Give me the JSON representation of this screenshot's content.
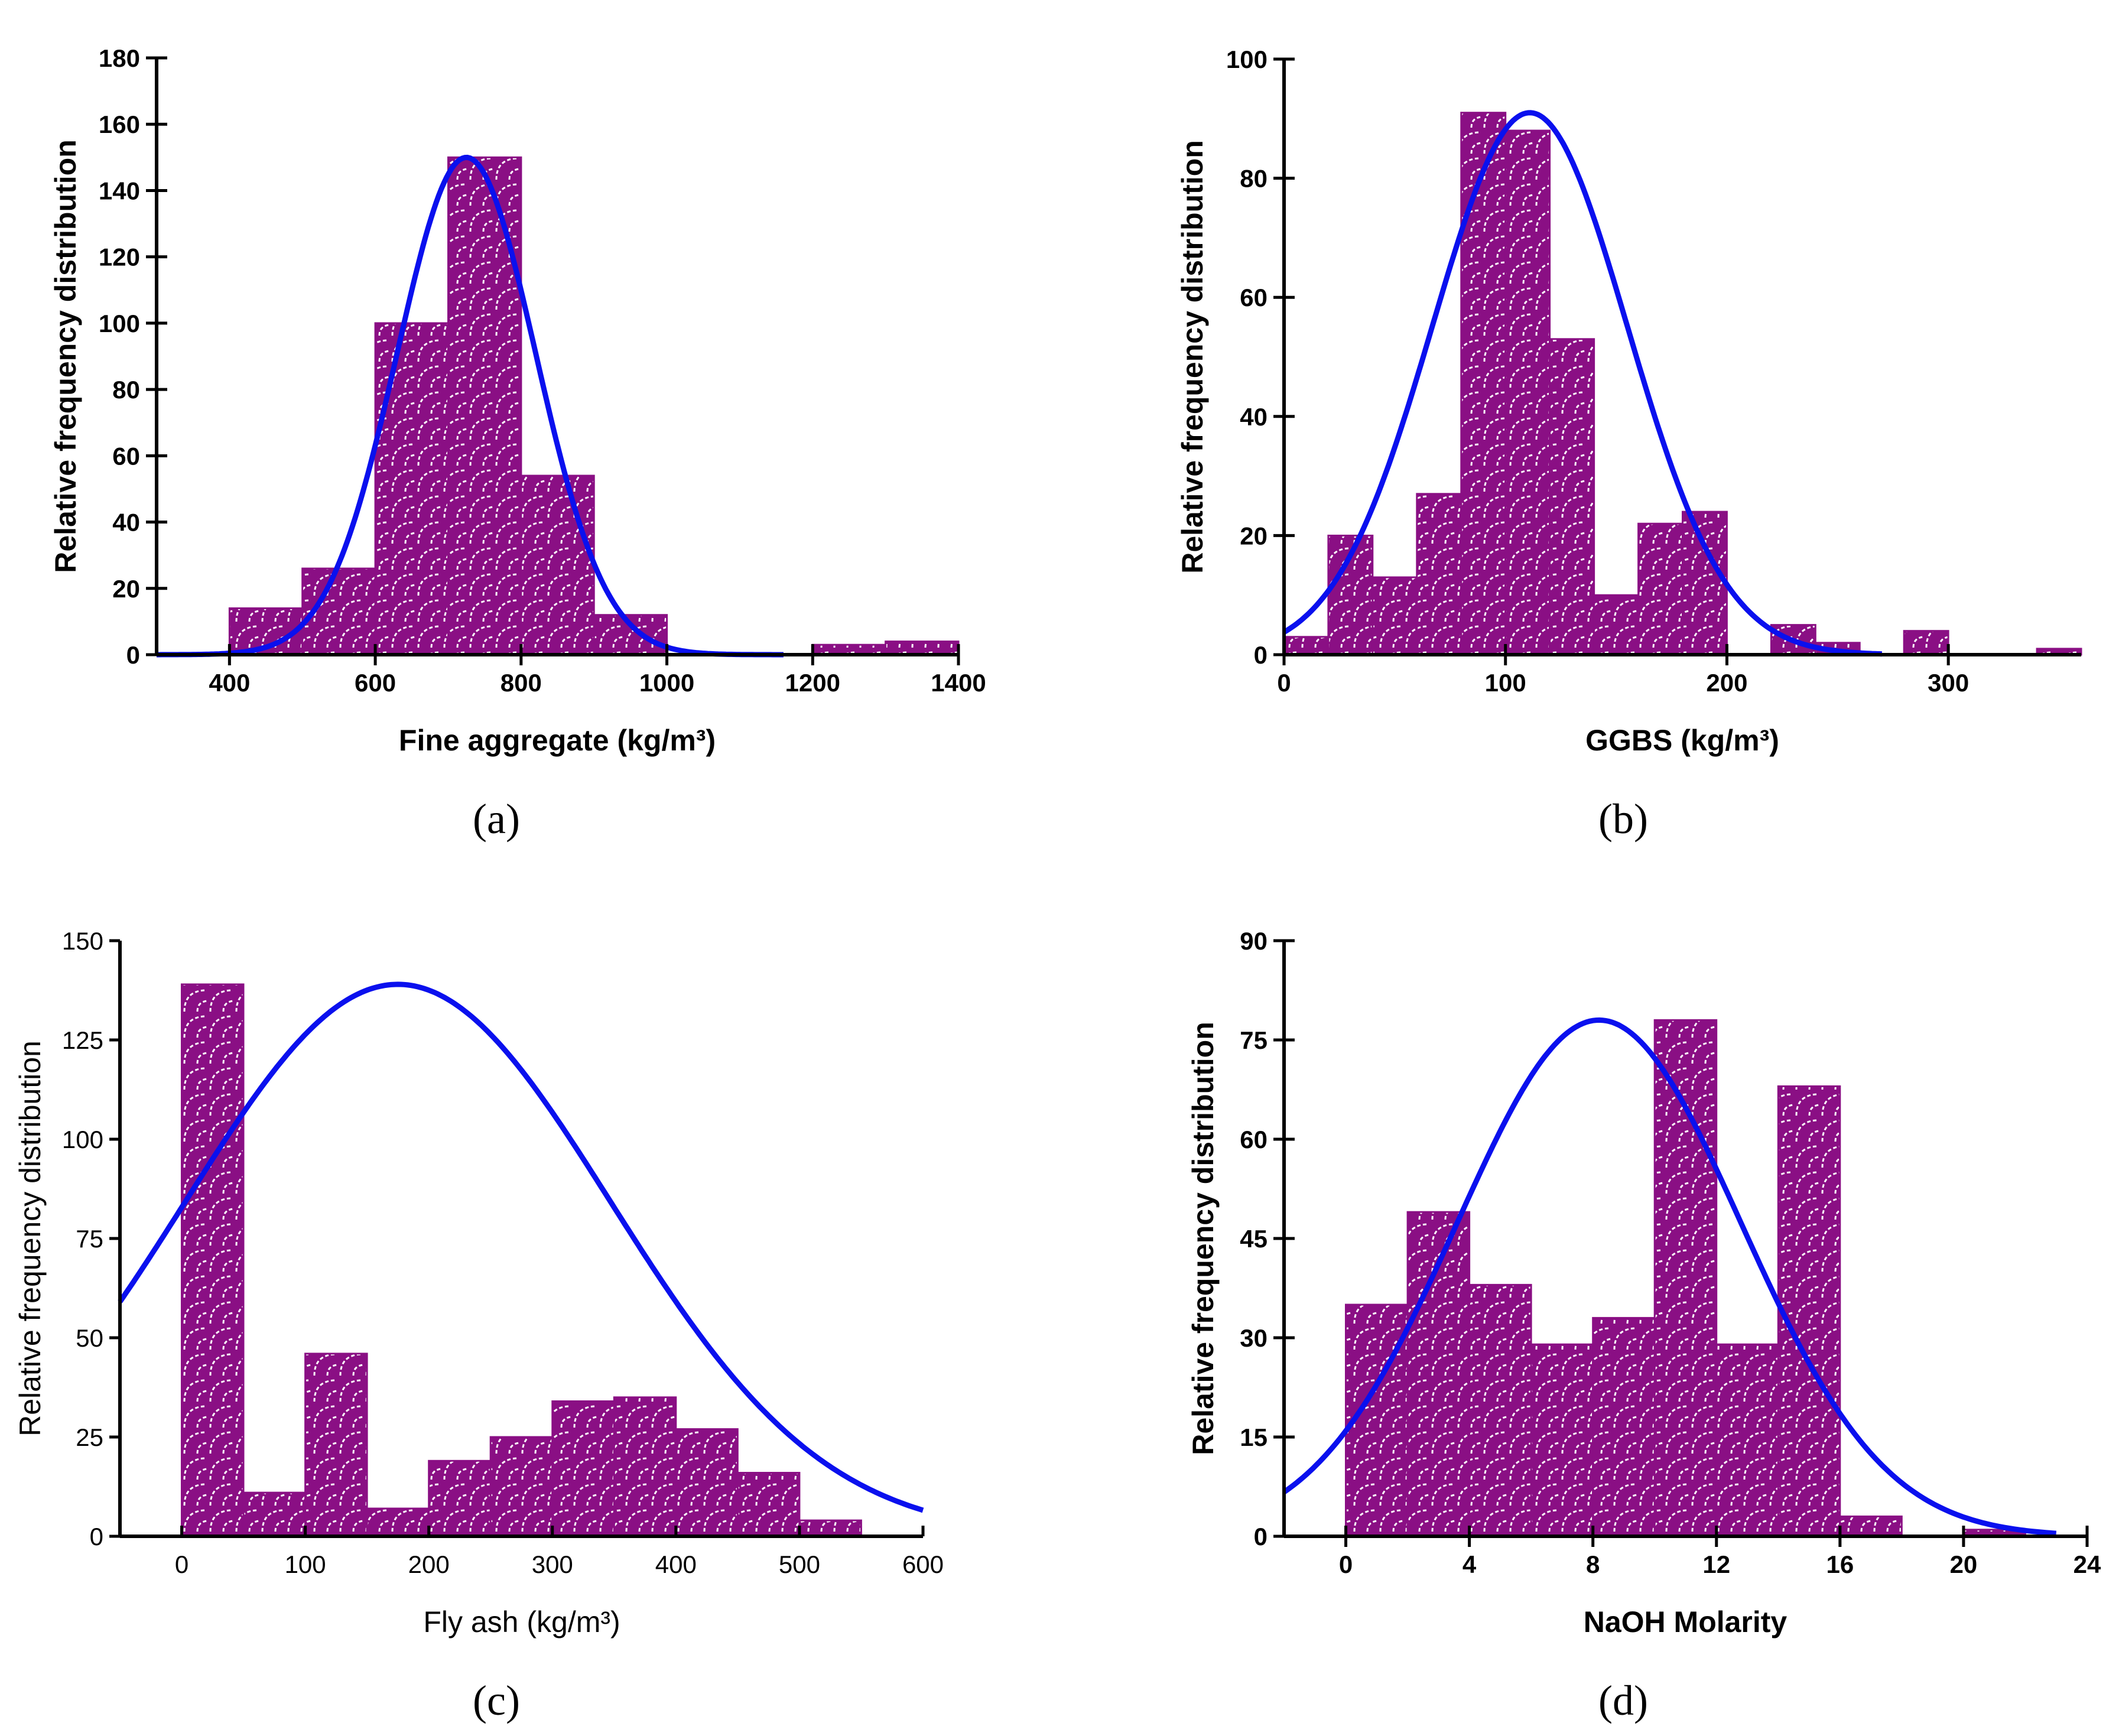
{
  "chart_data": [
    {
      "panel": "(a)",
      "type": "bar",
      "subtype": "histogram-with-normal-fit",
      "xlabel": "Fine aggregate (kg/m³)",
      "ylabel": "Relative frequency distribution",
      "xlim": [
        300,
        1400
      ],
      "ylim": [
        0,
        180
      ],
      "xticks": [
        400,
        600,
        800,
        1000,
        1200,
        1400
      ],
      "yticks": [
        0,
        20,
        40,
        60,
        80,
        100,
        120,
        140,
        160,
        180
      ],
      "bins": [
        {
          "x0": 400,
          "x1": 500,
          "value": 14
        },
        {
          "x0": 500,
          "x1": 600,
          "value": 26
        },
        {
          "x0": 600,
          "x1": 700,
          "value": 100
        },
        {
          "x0": 700,
          "x1": 800,
          "value": 150
        },
        {
          "x0": 800,
          "x1": 900,
          "value": 54
        },
        {
          "x0": 900,
          "x1": 1000,
          "value": 12
        },
        {
          "x0": 1200,
          "x1": 1300,
          "value": 3
        },
        {
          "x0": 1300,
          "x1": 1400,
          "value": 4
        }
      ],
      "fit": {
        "mean": 725,
        "sd": 95,
        "peak": 150,
        "x_range": [
          300,
          1160
        ]
      }
    },
    {
      "panel": "(b)",
      "type": "bar",
      "subtype": "histogram-with-normal-fit",
      "xlabel": "GGBS (kg/m³)",
      "ylabel": "Relative frequency distribution",
      "xlim": [
        0,
        360
      ],
      "ylim": [
        0,
        100
      ],
      "xticks": [
        0,
        100,
        200,
        300
      ],
      "yticks": [
        0,
        20,
        40,
        60,
        80,
        100
      ],
      "bins": [
        {
          "x0": 0,
          "x1": 20,
          "value": 3
        },
        {
          "x0": 20,
          "x1": 40,
          "value": 20
        },
        {
          "x0": 40,
          "x1": 60,
          "value": 13
        },
        {
          "x0": 60,
          "x1": 80,
          "value": 27
        },
        {
          "x0": 80,
          "x1": 100,
          "value": 91
        },
        {
          "x0": 100,
          "x1": 120,
          "value": 88
        },
        {
          "x0": 120,
          "x1": 140,
          "value": 53
        },
        {
          "x0": 140,
          "x1": 160,
          "value": 10
        },
        {
          "x0": 160,
          "x1": 180,
          "value": 22
        },
        {
          "x0": 180,
          "x1": 200,
          "value": 24
        },
        {
          "x0": 220,
          "x1": 240,
          "value": 5
        },
        {
          "x0": 240,
          "x1": 260,
          "value": 2
        },
        {
          "x0": 280,
          "x1": 300,
          "value": 4
        },
        {
          "x0": 340,
          "x1": 360,
          "value": 1
        }
      ],
      "fit": {
        "mean": 111,
        "sd": 44,
        "peak": 91,
        "x_range": [
          0,
          270
        ]
      }
    },
    {
      "panel": "(c)",
      "type": "bar",
      "subtype": "histogram-with-normal-fit",
      "xlabel": "Fly ash (kg/m³)",
      "ylabel": "Relative frequency distribution",
      "xlim": [
        -50,
        600
      ],
      "ylim": [
        0,
        150
      ],
      "xticks": [
        0,
        100,
        200,
        300,
        400,
        500,
        600
      ],
      "yticks": [
        0,
        25,
        50,
        75,
        100,
        125,
        150
      ],
      "bins": [
        {
          "x0": 0,
          "x1": 50,
          "value": 139
        },
        {
          "x0": 50,
          "x1": 100,
          "value": 11
        },
        {
          "x0": 100,
          "x1": 150,
          "value": 46
        },
        {
          "x0": 150,
          "x1": 200,
          "value": 7
        },
        {
          "x0": 200,
          "x1": 250,
          "value": 19
        },
        {
          "x0": 250,
          "x1": 300,
          "value": 25
        },
        {
          "x0": 300,
          "x1": 350,
          "value": 34
        },
        {
          "x0": 350,
          "x1": 400,
          "value": 35
        },
        {
          "x0": 400,
          "x1": 450,
          "value": 27
        },
        {
          "x0": 450,
          "x1": 500,
          "value": 16
        },
        {
          "x0": 500,
          "x1": 550,
          "value": 4
        }
      ],
      "fit": {
        "mean": 175,
        "sd": 172,
        "peak": 139,
        "x_range": [
          -50,
          600
        ]
      }
    },
    {
      "panel": "(d)",
      "type": "bar",
      "subtype": "histogram-with-normal-fit",
      "xlabel": "NaOH Molarity",
      "ylabel": "Relative frequency distribution",
      "xlim": [
        -2,
        24
      ],
      "ylim": [
        0,
        90
      ],
      "xticks": [
        0,
        4,
        8,
        12,
        16,
        20,
        24
      ],
      "yticks": [
        0,
        15,
        30,
        45,
        60,
        75,
        90
      ],
      "bins": [
        {
          "x0": 0,
          "x1": 2,
          "value": 35
        },
        {
          "x0": 2,
          "x1": 4,
          "value": 49
        },
        {
          "x0": 4,
          "x1": 6,
          "value": 38
        },
        {
          "x0": 6,
          "x1": 8,
          "value": 29
        },
        {
          "x0": 8,
          "x1": 10,
          "value": 33
        },
        {
          "x0": 10,
          "x1": 12,
          "value": 78
        },
        {
          "x0": 12,
          "x1": 14,
          "value": 29
        },
        {
          "x0": 14,
          "x1": 16,
          "value": 68
        },
        {
          "x0": 16,
          "x1": 18,
          "value": 3
        },
        {
          "x0": 20,
          "x1": 22,
          "value": 1
        }
      ],
      "fit": {
        "mean": 8.2,
        "sd": 4.6,
        "peak": 78,
        "x_range": [
          -2,
          23
        ]
      }
    }
  ],
  "colors": {
    "bar_fill": "#8a0f84",
    "bar_pattern": "#ffffff",
    "curve": "#0a10ee",
    "axis": "#000000"
  }
}
